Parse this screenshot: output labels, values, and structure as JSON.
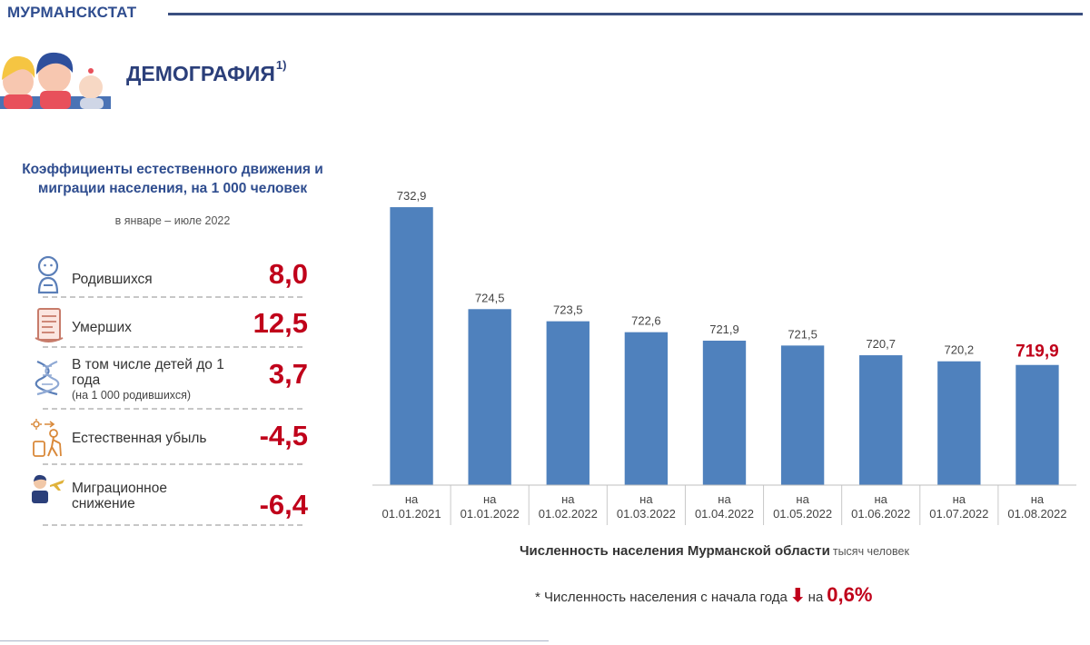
{
  "header": {
    "brand": "МУРМАНСКСТАТ",
    "title": "ДЕМОГРАФИЯ",
    "title_sup": "1)"
  },
  "icons": {
    "header": "family-icon",
    "births": "baby-icon",
    "deaths": "certificate-icon",
    "infant": "dna-icon",
    "natural_loss": "elderly-icon",
    "migration": "migrant-airplane-icon"
  },
  "coefficients": {
    "title": "Коэффициенты естественного движения и миграции населения, на 1 000 человек",
    "subtitle": "в январе – июле  2022",
    "rows": [
      {
        "label": "Родившихся",
        "value": "8,0"
      },
      {
        "label": "Умерших",
        "value": "12,5"
      },
      {
        "label": "В том числе детей до 1 года",
        "note": "(на 1 000 родившихся)",
        "value": "3,7"
      },
      {
        "label": "Естественная убыль",
        "value": "-4,5"
      },
      {
        "label": "Миграционное снижение",
        "value": "-6,4"
      }
    ]
  },
  "colors": {
    "bar": "#4f81bd",
    "accent": "#c0001a",
    "brand": "#2f4d8f"
  },
  "chart_data": {
    "type": "bar",
    "categories": [
      "на 01.01.2021",
      "на 01.01.2022",
      "на 01.02.2022",
      "на 01.03.2022",
      "на 01.04.2022",
      "на 01.05.2022",
      "на 01.06.2022",
      "на 01.07.2022",
      "на 01.08.2022"
    ],
    "values": [
      732.9,
      724.5,
      723.5,
      722.6,
      721.9,
      721.5,
      720.7,
      720.2,
      719.9
    ],
    "value_labels": [
      "732,9",
      "724,5",
      "723,5",
      "722,6",
      "721,9",
      "721,5",
      "720,7",
      "720,2",
      "719,9"
    ],
    "highlight_index": 8,
    "title": "Численность населения Мурманской области",
    "unit": "тысяч человек",
    "ylim": [
      710,
      735
    ],
    "grid": false
  },
  "footnote": {
    "text": "* Численность населения с начала года",
    "arrow": "⬇",
    "on": "на",
    "value": "0,6%"
  }
}
